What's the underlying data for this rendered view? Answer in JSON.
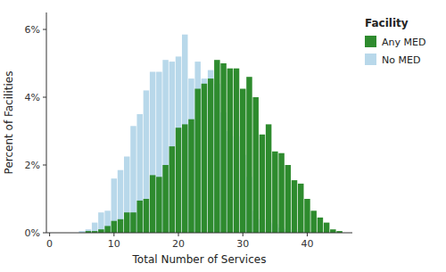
{
  "chart_data": {
    "type": "bar",
    "xlabel": "Total Number of Services",
    "ylabel": "Percent of Facilities",
    "legend_title": "Facility",
    "legend": "right",
    "grid": false,
    "x": [
      1,
      2,
      3,
      4,
      5,
      6,
      7,
      8,
      9,
      10,
      11,
      12,
      13,
      14,
      15,
      16,
      17,
      18,
      19,
      20,
      21,
      22,
      23,
      24,
      25,
      26,
      27,
      28,
      29,
      30,
      31,
      32,
      33,
      34,
      35,
      36,
      37,
      38,
      39,
      40,
      41,
      42,
      43,
      44,
      45
    ],
    "series": [
      {
        "name": "Any MED",
        "color": "#2e8b2e",
        "values": [
          0.0,
          0.0,
          0.0,
          0.0,
          0.0,
          0.05,
          0.05,
          0.1,
          0.2,
          0.35,
          0.4,
          0.6,
          0.6,
          0.95,
          1.0,
          1.7,
          1.65,
          2.0,
          2.55,
          3.1,
          3.2,
          3.35,
          4.25,
          4.4,
          4.55,
          5.1,
          5.0,
          4.85,
          4.85,
          4.25,
          4.6,
          4.0,
          2.9,
          3.2,
          2.4,
          2.35,
          2.0,
          1.55,
          1.45,
          1.0,
          0.65,
          0.45,
          0.3,
          0.1,
          0.05
        ]
      },
      {
        "name": "No MED",
        "color": "#b8d8ea",
        "values": [
          0.0,
          0.0,
          0.0,
          0.0,
          0.05,
          0.1,
          0.3,
          0.6,
          0.65,
          1.6,
          1.85,
          2.25,
          3.15,
          3.5,
          4.2,
          4.75,
          4.75,
          5.1,
          5.05,
          5.2,
          5.85,
          4.55,
          5.05,
          4.55,
          4.8,
          4.4,
          3.55,
          3.0,
          2.85,
          2.3,
          1.65,
          0.65,
          0.4,
          0.3,
          0.25,
          0.15,
          0.1,
          0.1,
          0.05,
          0.0,
          0.0,
          0.0,
          0.0,
          0.0,
          0.0
        ]
      }
    ],
    "xlim": [
      -0.5,
      47
    ],
    "ylim": [
      0,
      6.5
    ],
    "xticks": [
      0,
      10,
      20,
      30,
      40
    ],
    "yticks": [
      {
        "value": 0,
        "label": "0%"
      },
      {
        "value": 2,
        "label": "2%"
      },
      {
        "value": 4,
        "label": "4%"
      },
      {
        "value": 6,
        "label": "6%"
      }
    ]
  }
}
